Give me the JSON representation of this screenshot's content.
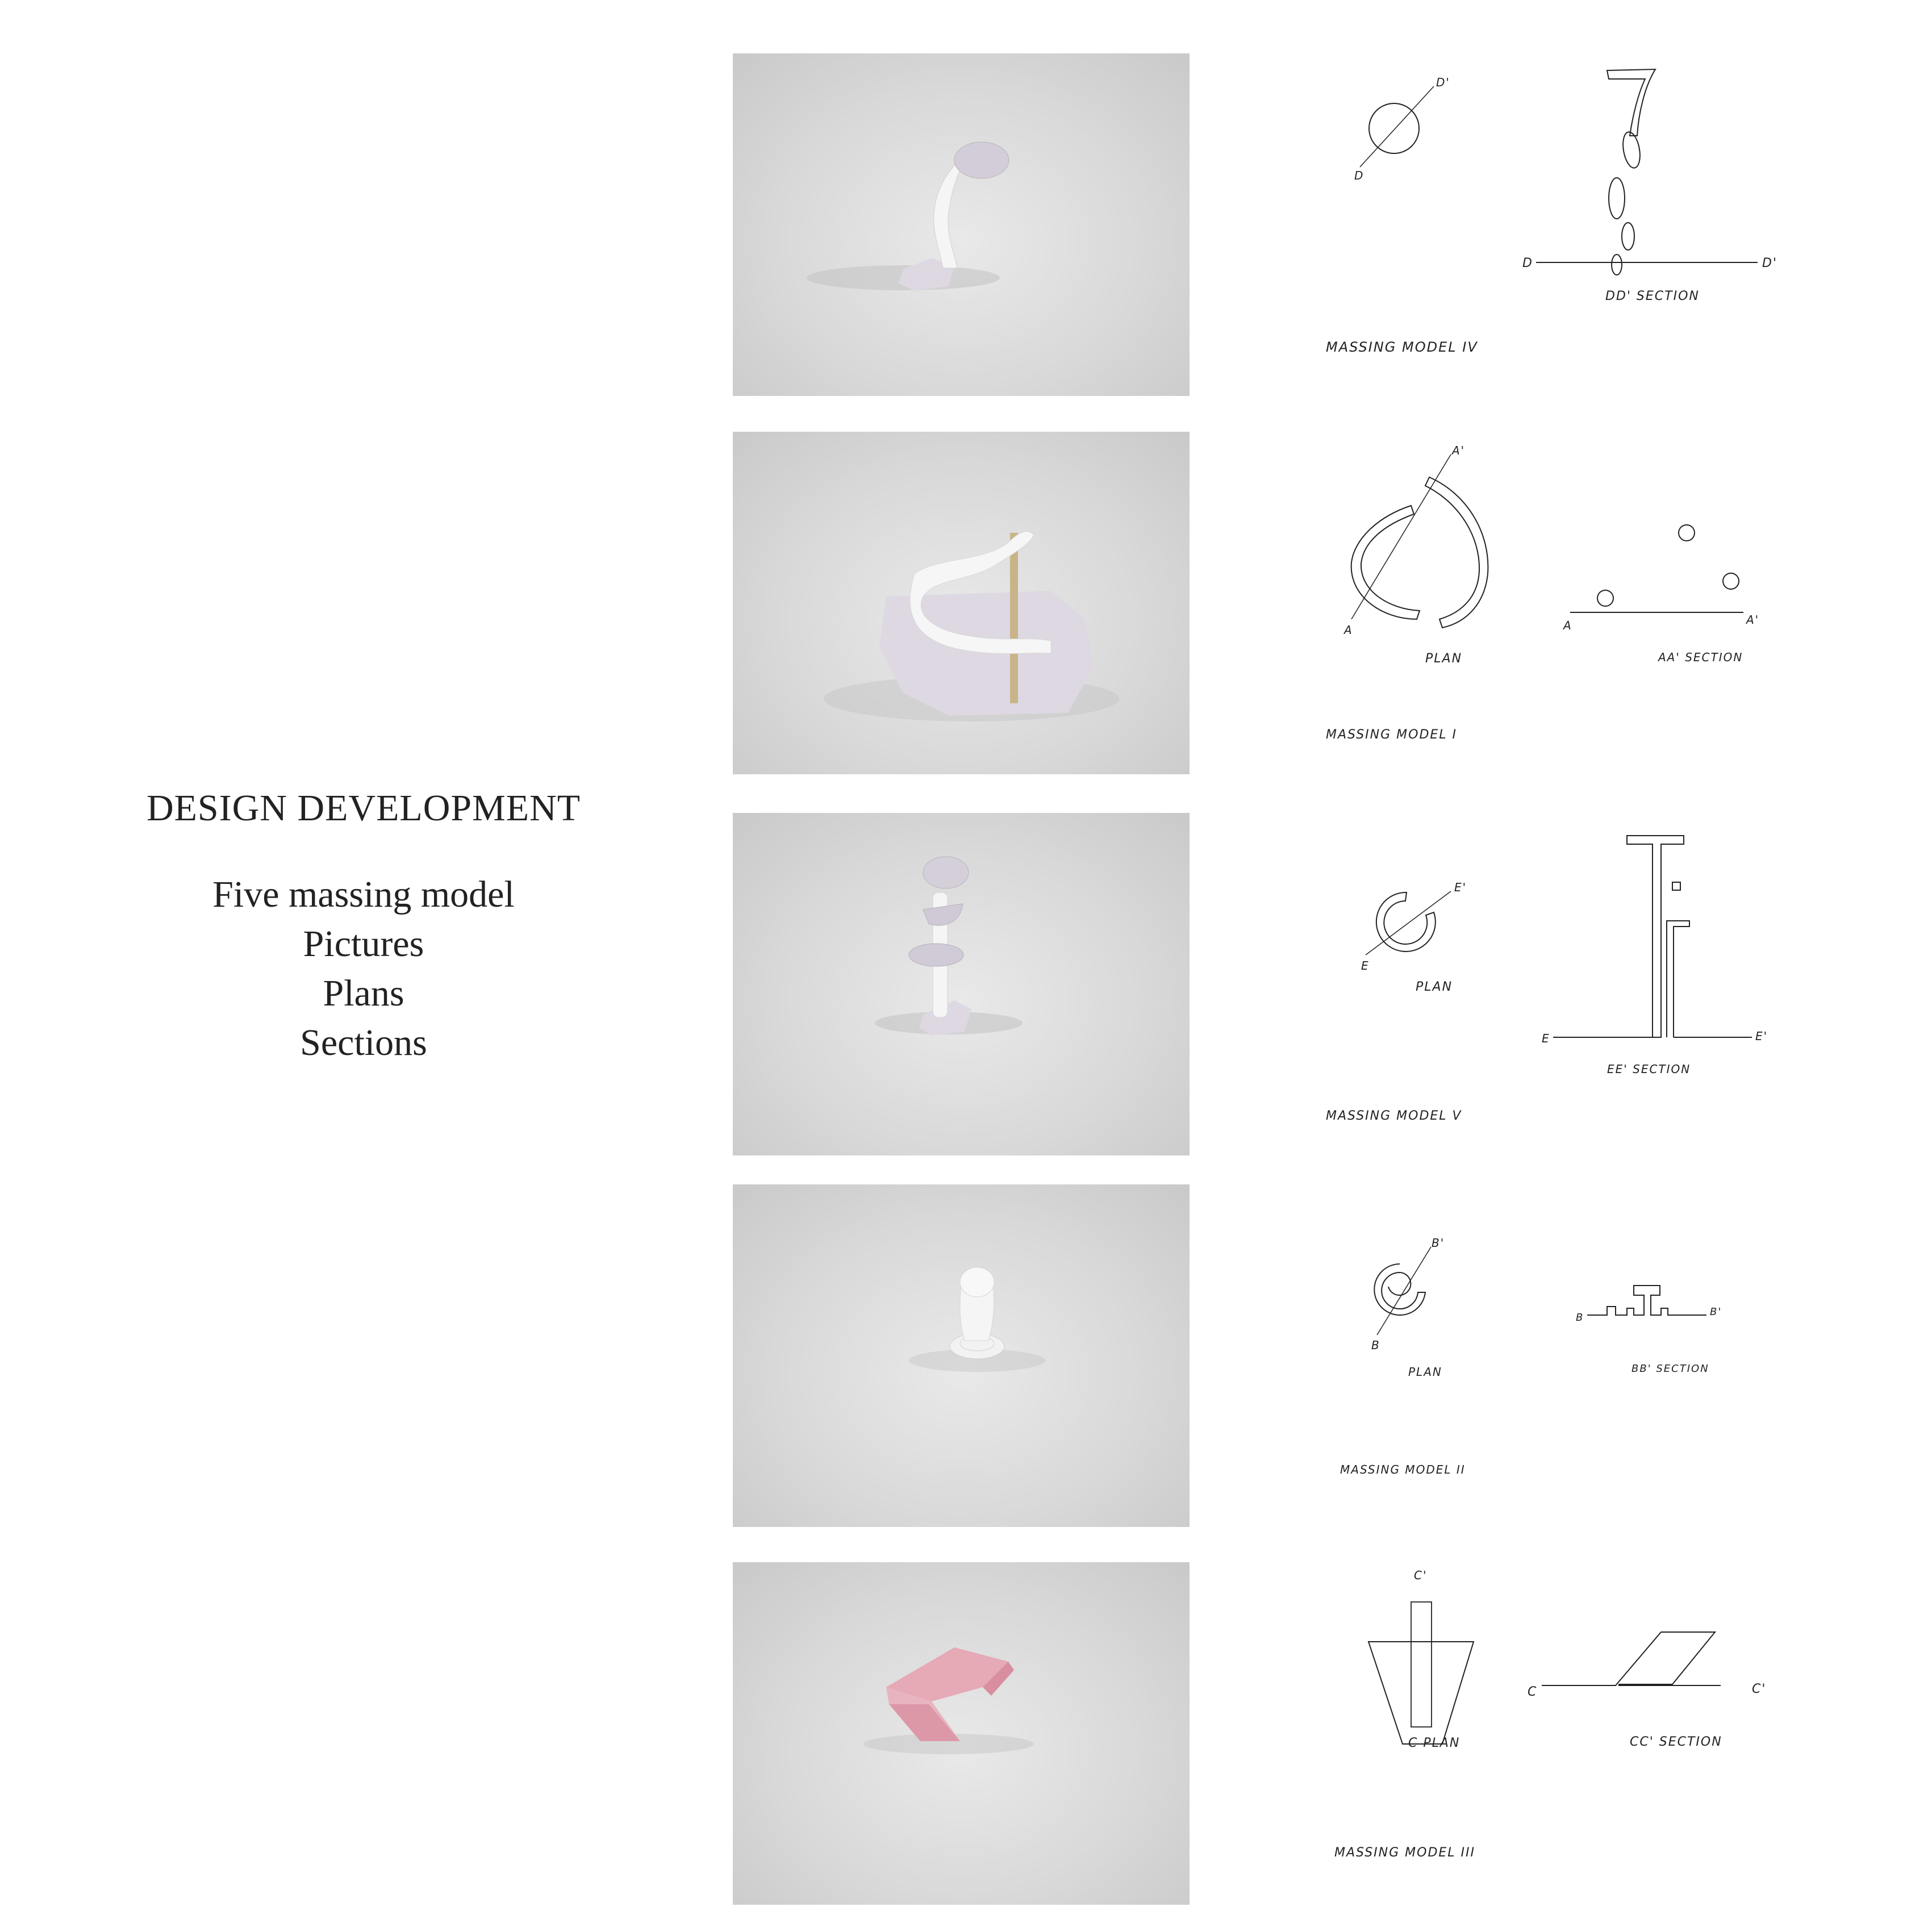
{
  "intro": {
    "title": "DESIGN DEVELOPMENT",
    "lines": [
      "Five massing model",
      "Pictures",
      "Plans",
      "Sections"
    ]
  },
  "rows": [
    {
      "photo_icon": "model-column-disc-photo",
      "model_label": "MASSING MODEL IV",
      "plan_label": "",
      "section_label": "DD' SECTION",
      "cut_marks": [
        "D",
        "D'",
        "D",
        "D'"
      ]
    },
    {
      "photo_icon": "model-arc-ribbon-photo",
      "model_label": "MASSING MODEL I",
      "plan_label": "PLAN",
      "section_label": "AA'  SECTION",
      "cut_marks": [
        "A'",
        "A",
        "A",
        "A'"
      ]
    },
    {
      "photo_icon": "model-stacked-discs-photo",
      "model_label": "MASSING MODEL V",
      "plan_label": "PLAN",
      "section_label": "EE' SECTION",
      "cut_marks": [
        "E'",
        "E",
        "E",
        "E'"
      ]
    },
    {
      "photo_icon": "model-spiral-photo",
      "model_label": "MASSING MODEL II",
      "plan_label": "PLAN",
      "section_label": "BB' SECTION",
      "cut_marks": [
        "B'",
        "B",
        "B",
        "B'"
      ]
    },
    {
      "photo_icon": "model-pink-fold-photo",
      "model_label": "MASSING MODEL III",
      "plan_label": "C   PLAN",
      "section_label": "CC' SECTION",
      "cut_marks": [
        "C'",
        "C",
        "C'"
      ]
    }
  ],
  "colors": {
    "photo_background": "#d9d9d9",
    "model_white": "#f4f4f4",
    "model_lilac": "#d8d3de",
    "model_pink": "#e3a4b2",
    "ink": "#222222"
  }
}
